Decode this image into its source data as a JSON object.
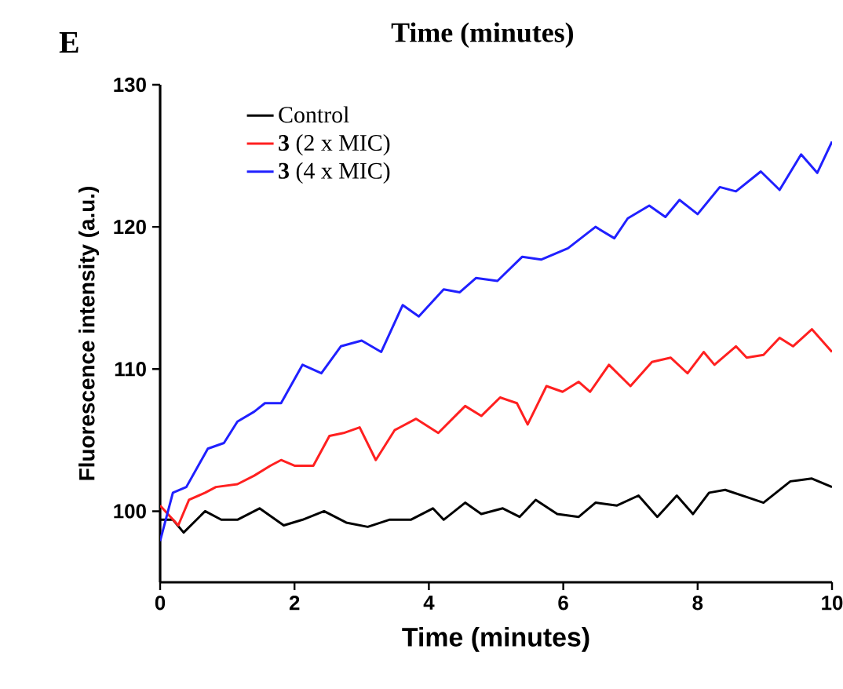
{
  "chart_data": {
    "type": "line",
    "title": "Time (minutes)",
    "xlabel": "Time (minutes)",
    "ylabel": "Fluorescence intensity (a.u.)",
    "annotations": [
      "E"
    ],
    "xlim": [
      0,
      10
    ],
    "ylim": [
      95,
      130
    ],
    "xticks": [
      0,
      2,
      4,
      6,
      8,
      10
    ],
    "yticks": [
      100,
      110,
      120,
      130
    ],
    "grid": false,
    "legend": "top left",
    "marker": "none",
    "line_style": "solid",
    "series": [
      {
        "name": "Control",
        "color": "#000000",
        "x": [
          0,
          0.19,
          0.35,
          0.67,
          0.91,
          1.15,
          1.48,
          1.84,
          2.12,
          2.44,
          2.77,
          3.09,
          3.41,
          3.73,
          4.06,
          4.22,
          4.54,
          4.78,
          5.1,
          5.35,
          5.59,
          5.91,
          6.23,
          6.48,
          6.8,
          7.12,
          7.4,
          7.69,
          7.93,
          8.17,
          8.41,
          8.73,
          8.98,
          9.38,
          9.7,
          10
        ],
        "values": [
          99.4,
          99.4,
          98.5,
          100,
          99.4,
          99.4,
          100.2,
          99.0,
          99.4,
          100,
          99.2,
          98.9,
          99.4,
          99.4,
          100.2,
          99.4,
          100.6,
          99.8,
          100.2,
          99.6,
          100.8,
          99.8,
          99.6,
          100.6,
          100.4,
          101.1,
          99.6,
          101.1,
          99.8,
          101.3,
          101.5,
          101.0,
          100.6,
          102.1,
          102.3,
          101.7
        ]
      },
      {
        "name": "**3** (2 x MIC)",
        "color": "#ff2020",
        "x": [
          0,
          0.27,
          0.43,
          0.67,
          0.83,
          1.15,
          1.4,
          1.64,
          1.8,
          2.0,
          2.28,
          2.52,
          2.73,
          2.97,
          3.21,
          3.49,
          3.81,
          4.14,
          4.54,
          4.78,
          5.06,
          5.31,
          5.47,
          5.75,
          5.99,
          6.23,
          6.4,
          6.68,
          7.0,
          7.32,
          7.6,
          7.85,
          8.09,
          8.25,
          8.57,
          8.73,
          8.98,
          9.22,
          9.42,
          9.7,
          10
        ],
        "values": [
          100.4,
          99.0,
          100.8,
          101.3,
          101.7,
          101.9,
          102.5,
          103.2,
          103.6,
          103.2,
          103.2,
          105.3,
          105.5,
          105.9,
          103.6,
          105.7,
          106.5,
          105.5,
          107.4,
          106.7,
          108.0,
          107.6,
          106.1,
          108.8,
          108.4,
          109.1,
          108.4,
          110.3,
          108.8,
          110.5,
          110.8,
          109.7,
          111.2,
          110.3,
          111.6,
          110.8,
          111.0,
          112.2,
          111.6,
          112.8,
          111.2
        ]
      },
      {
        "name": "**3** (4 x MIC)",
        "color": "#2020ff",
        "x": [
          0,
          0.19,
          0.39,
          0.71,
          0.95,
          1.15,
          1.4,
          1.56,
          1.8,
          2.12,
          2.4,
          2.69,
          3.0,
          3.29,
          3.61,
          3.85,
          4.22,
          4.46,
          4.7,
          5.02,
          5.39,
          5.67,
          6.07,
          6.48,
          6.76,
          6.96,
          7.28,
          7.52,
          7.73,
          8.0,
          8.33,
          8.57,
          8.94,
          9.22,
          9.54,
          9.78,
          10
        ],
        "values": [
          97.9,
          101.3,
          101.7,
          104.4,
          104.8,
          106.3,
          107.0,
          107.6,
          107.6,
          110.3,
          109.7,
          111.6,
          112.0,
          111.2,
          114.5,
          113.7,
          115.6,
          115.4,
          116.4,
          116.2,
          117.9,
          117.7,
          118.5,
          120.0,
          119.2,
          120.6,
          121.5,
          120.7,
          121.9,
          120.9,
          122.8,
          122.5,
          123.9,
          122.6,
          125.1,
          123.8,
          126.0
        ]
      }
    ]
  }
}
